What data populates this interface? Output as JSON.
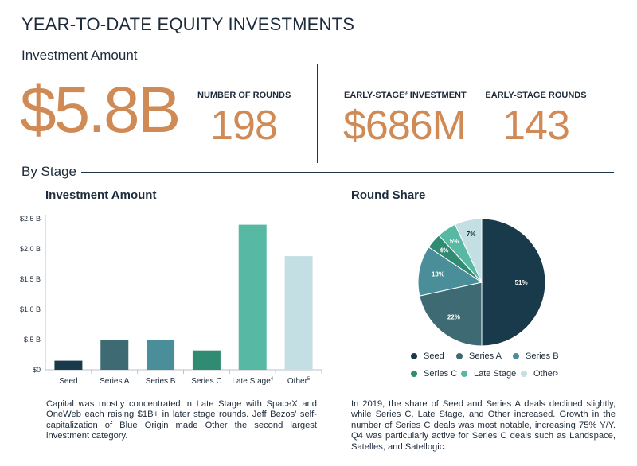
{
  "title": "YEAR-TO-DATE EQUITY INVESTMENTS",
  "sections": {
    "investment_amount": "Investment Amount",
    "by_stage": "By Stage"
  },
  "stats": {
    "total_amount": "$5.8B",
    "rounds_label": "NUMBER OF ROUNDS",
    "rounds_value": "198",
    "early_inv_label_pre": "EARLY-STAGE",
    "early_inv_label_sup": "3",
    "early_inv_label_post": " INVESTMENT",
    "early_inv_value": "$686M",
    "early_rounds_label": "EARLY-STAGE ROUNDS",
    "early_rounds_value": "143"
  },
  "bar_title": "Investment Amount",
  "pie_title": "Round Share",
  "bar_caption": "Capital was mostly concentrated in Late Stage with SpaceX and OneWeb each raising $1B+ in later stage rounds. Jeff Bezos' self-capitalization of Blue Origin made Other the second largest investment category.",
  "pie_caption": "In 2019, the share of Seed and Series A deals declined slightly, while Series C, Late Stage, and Other increased. Growth in the number of Series C deals was most notable, increasing 75% Y/Y. Q4 was particularly active for Series C deals such as Landspace, Satelles, and Satellogic.",
  "legend": [
    {
      "label": "Seed",
      "sup": "",
      "color": "#183a4a"
    },
    {
      "label": "Series A",
      "sup": "",
      "color": "#3e6a74"
    },
    {
      "label": "Series B",
      "sup": "",
      "color": "#4a8e99"
    },
    {
      "label": "Series C",
      "sup": "",
      "color": "#2f8b72"
    },
    {
      "label": "Late Stage",
      "sup": "",
      "color": "#57b8a4"
    },
    {
      "label": "Other",
      "sup": "5",
      "color": "#c3dfe3"
    }
  ],
  "chart_data": [
    {
      "type": "bar",
      "title": "Investment Amount",
      "categories": [
        "Seed",
        "Series A",
        "Series B",
        "Series C",
        "Late Stage",
        "Other"
      ],
      "category_sups": [
        "",
        "",
        "",
        "",
        "4",
        "5"
      ],
      "values": [
        0.15,
        0.5,
        0.5,
        0.32,
        2.4,
        1.88
      ],
      "unit": "B",
      "ylim": [
        0,
        2.5
      ],
      "yticks": [
        0,
        0.5,
        1.0,
        1.5,
        2.0,
        2.5
      ],
      "ytick_labels": [
        "$0",
        "$.5 B",
        "$1.0 B",
        "$1.5 B",
        "$2.0 B",
        "$2.5 B"
      ],
      "colors": [
        "#183a4a",
        "#3e6a74",
        "#4a8e99",
        "#2f8b72",
        "#57b8a4",
        "#c3dfe3"
      ],
      "grid": false
    },
    {
      "type": "pie",
      "title": "Round Share",
      "categories": [
        "Seed",
        "Series A",
        "Series B",
        "Series C",
        "Late Stage",
        "Other"
      ],
      "values": [
        51,
        22,
        13,
        4,
        5,
        7
      ],
      "labels": [
        "51%",
        "22%",
        "13%",
        "4%",
        "5%",
        "7%"
      ],
      "colors": [
        "#183a4a",
        "#3e6a74",
        "#4a8e99",
        "#2f8b72",
        "#57b8a4",
        "#c3dfe3"
      ],
      "label_colors": [
        "#ffffff",
        "#ffffff",
        "#ffffff",
        "#ffffff",
        "#ffffff",
        "#1d2b3a"
      ]
    }
  ]
}
